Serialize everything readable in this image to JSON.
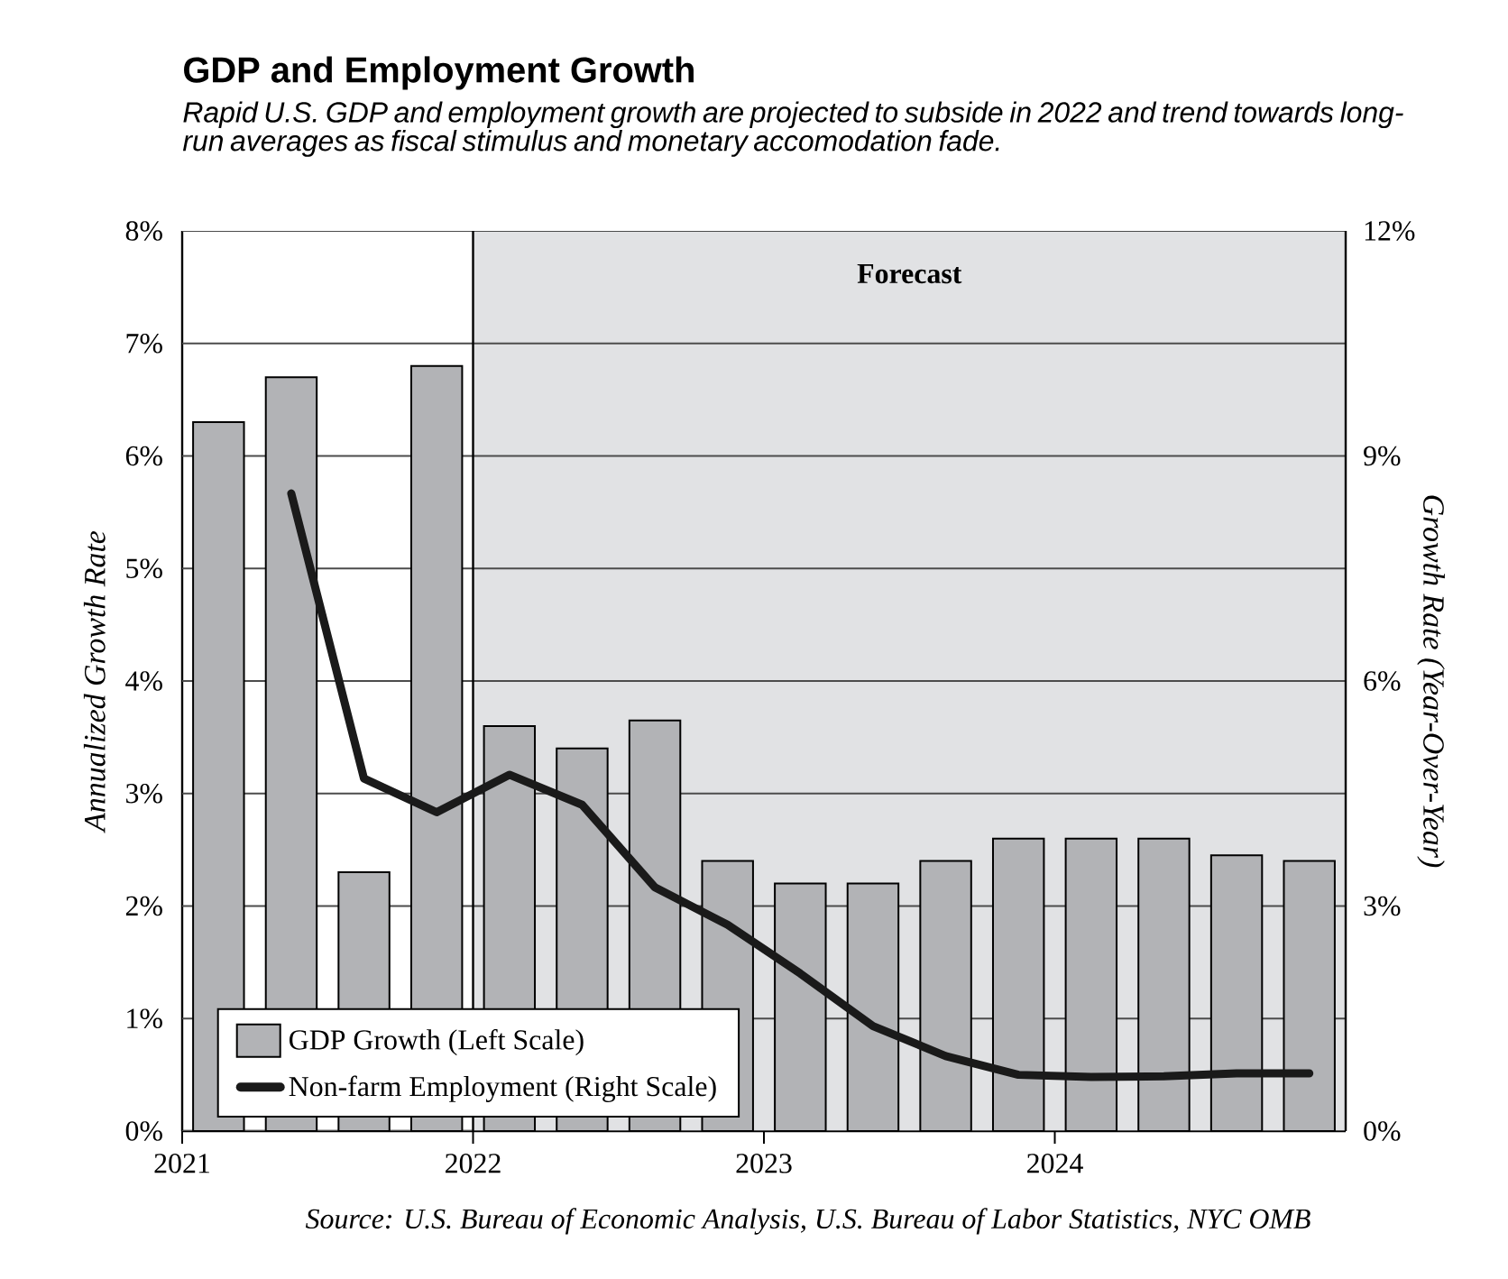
{
  "chart_data": {
    "type": "bar",
    "title": "GDP and Employment Growth",
    "subtitle": "Rapid U.S. GDP and employment growth are projected to subside in 2022 and trend towards long-run averages as fiscal stimulus and monetary accomodation fade.",
    "ylabel": "Annualized Growth Rate",
    "y2label": "Growth Rate (Year-Over-Year)",
    "annotations": [
      "Source: U.S. Bureau of Economic Analysis, U.S. Bureau of Labor Statistics, NYC OMB"
    ],
    "x": [
      2021.125,
      2021.375,
      2021.625,
      2021.875,
      2022.125,
      2022.375,
      2022.625,
      2022.875,
      2023.125,
      2023.375,
      2023.625,
      2023.875,
      2024.125,
      2024.375,
      2024.625,
      2024.875
    ],
    "series": [
      {
        "name": "GDP Growth (Left Scale)",
        "color": "#b2b3b6",
        "values": [
          6.3,
          6.7,
          2.3,
          6.8,
          3.6,
          3.4,
          3.65,
          2.4,
          2.2,
          2.2,
          2.4,
          2.6,
          2.6,
          2.6,
          2.45,
          2.4
        ]
      },
      {
        "name": "Non-farm Employment (Right Scale)",
        "type": "line",
        "axis": "y2",
        "color": "#1a1a1a",
        "values": [
          null,
          8.5,
          4.7,
          4.25,
          4.75,
          4.35,
          3.25,
          2.75,
          2.1,
          1.4,
          1.0,
          0.75,
          0.72,
          0.73,
          0.77,
          0.77
        ]
      }
    ],
    "xlim": [
      2021,
      2025
    ],
    "xticks": [
      2021,
      2022,
      2023,
      2024
    ],
    "ylim": [
      0,
      8
    ],
    "yticks": [
      {
        "value": 0,
        "label": "0%"
      },
      {
        "value": 1,
        "label": "1%"
      },
      {
        "value": 2,
        "label": "2%"
      },
      {
        "value": 3,
        "label": "3%"
      },
      {
        "value": 4,
        "label": "4%"
      },
      {
        "value": 5,
        "label": "5%"
      },
      {
        "value": 6,
        "label": "6%"
      },
      {
        "value": 7,
        "label": "7%"
      },
      {
        "value": 8,
        "label": "8%"
      }
    ],
    "y2lim": [
      0,
      12
    ],
    "y2ticks": [
      {
        "value": 0,
        "label": "0%"
      },
      {
        "value": 3,
        "label": "3%"
      },
      {
        "value": 6,
        "label": "6%"
      },
      {
        "value": 9,
        "label": "9%"
      },
      {
        "value": 12,
        "label": "12%"
      }
    ],
    "ref_lines": [
      {
        "axis": "x",
        "value": 2022,
        "color": "#000000"
      }
    ],
    "bands": [
      {
        "axis": "x",
        "from": 2022,
        "to": 2025,
        "label": "Forecast",
        "color": "#e1e2e4"
      }
    ],
    "grid": "y",
    "legend": "bottom left"
  }
}
